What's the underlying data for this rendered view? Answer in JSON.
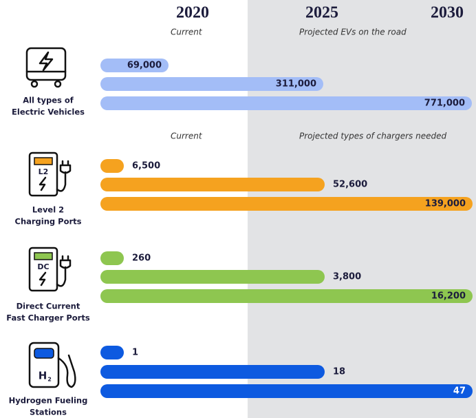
{
  "header": {
    "years": [
      "2020",
      "2025",
      "2030"
    ],
    "notes": [
      "Current",
      "Projected EVs on the road"
    ]
  },
  "chargers_notes": [
    "Current",
    "Projected types of chargers needed"
  ],
  "chart_data": [
    {
      "type": "bar",
      "title": [
        "All types of",
        "Electric Vehicles"
      ],
      "color": "#a3bdf7",
      "values": [
        69000,
        311000,
        771000
      ],
      "value_labels": [
        "69,000",
        "311,000",
        "771,000"
      ]
    },
    {
      "type": "bar",
      "title": [
        "Level 2",
        "Charging Ports"
      ],
      "color": "#f5a21f",
      "values": [
        6500,
        52600,
        139000
      ],
      "value_labels": [
        "6,500",
        "52,600",
        "139,000"
      ]
    },
    {
      "type": "bar",
      "title": [
        "Direct Current",
        "Fast Charger Ports"
      ],
      "color": "#8ec650",
      "values": [
        260,
        3800,
        16200
      ],
      "value_labels": [
        "260",
        "3,800",
        "16,200"
      ]
    },
    {
      "type": "bar",
      "title": [
        "Hydrogen Fueling",
        "Stations"
      ],
      "color": "#0d5ae0",
      "values": [
        1,
        18,
        47
      ],
      "value_labels": [
        "1",
        "18",
        "47"
      ]
    }
  ]
}
